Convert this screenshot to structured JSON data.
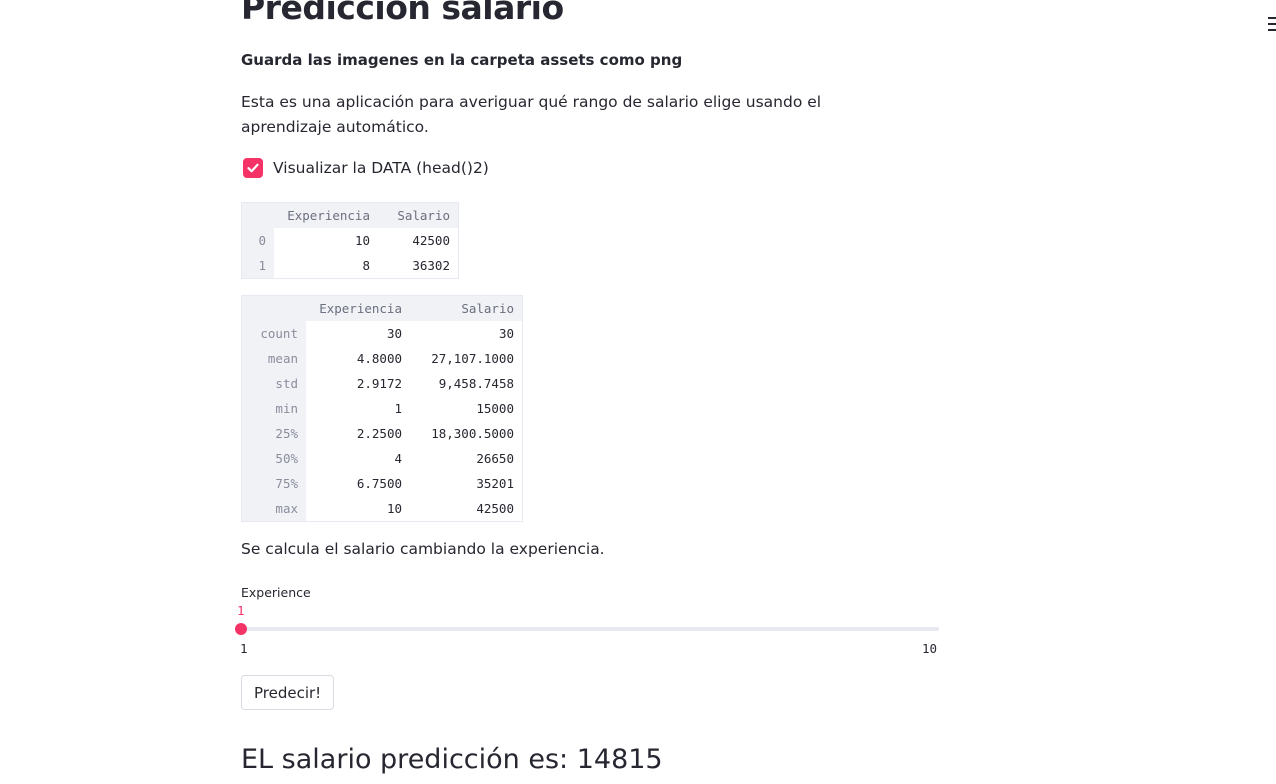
{
  "app": {
    "title": "Predicción salario",
    "subtitle": "Guarda las imagenes en la carpeta assets como png",
    "intro": "Esta es una aplicación para averiguar qué rango de salario elige usando el aprendizaje automático.",
    "menu_icon": "hamburger-menu-icon",
    "accent_color": "#f63366"
  },
  "checkbox": {
    "label": "Visualizar la DATA (head()2)",
    "checked": true,
    "icon": "check-icon"
  },
  "head_table": {
    "columns": [
      "Experiencia",
      "Salario"
    ],
    "rows": [
      {
        "index": "0",
        "values": [
          "10",
          "42500"
        ]
      },
      {
        "index": "1",
        "values": [
          "8",
          "36302"
        ]
      }
    ]
  },
  "describe_table": {
    "columns": [
      "Experiencia",
      "Salario"
    ],
    "rows": [
      {
        "index": "count",
        "values": [
          "30",
          "30"
        ]
      },
      {
        "index": "mean",
        "values": [
          "4.8000",
          "27,107.1000"
        ]
      },
      {
        "index": "std",
        "values": [
          "2.9172",
          "9,458.7458"
        ]
      },
      {
        "index": "min",
        "values": [
          "1",
          "15000"
        ]
      },
      {
        "index": "25%",
        "values": [
          "2.2500",
          "18,300.5000"
        ]
      },
      {
        "index": "50%",
        "values": [
          "4",
          "26650"
        ]
      },
      {
        "index": "75%",
        "values": [
          "6.7500",
          "35201"
        ]
      },
      {
        "index": "max",
        "values": [
          "10",
          "42500"
        ]
      }
    ]
  },
  "calc_text": "Se calcula el salario cambiando la experiencia.",
  "slider": {
    "label": "Experience",
    "value": "1",
    "min": "1",
    "max": "10"
  },
  "button": {
    "label": "Predecir!"
  },
  "result": "EL salario predicción es: 14815"
}
